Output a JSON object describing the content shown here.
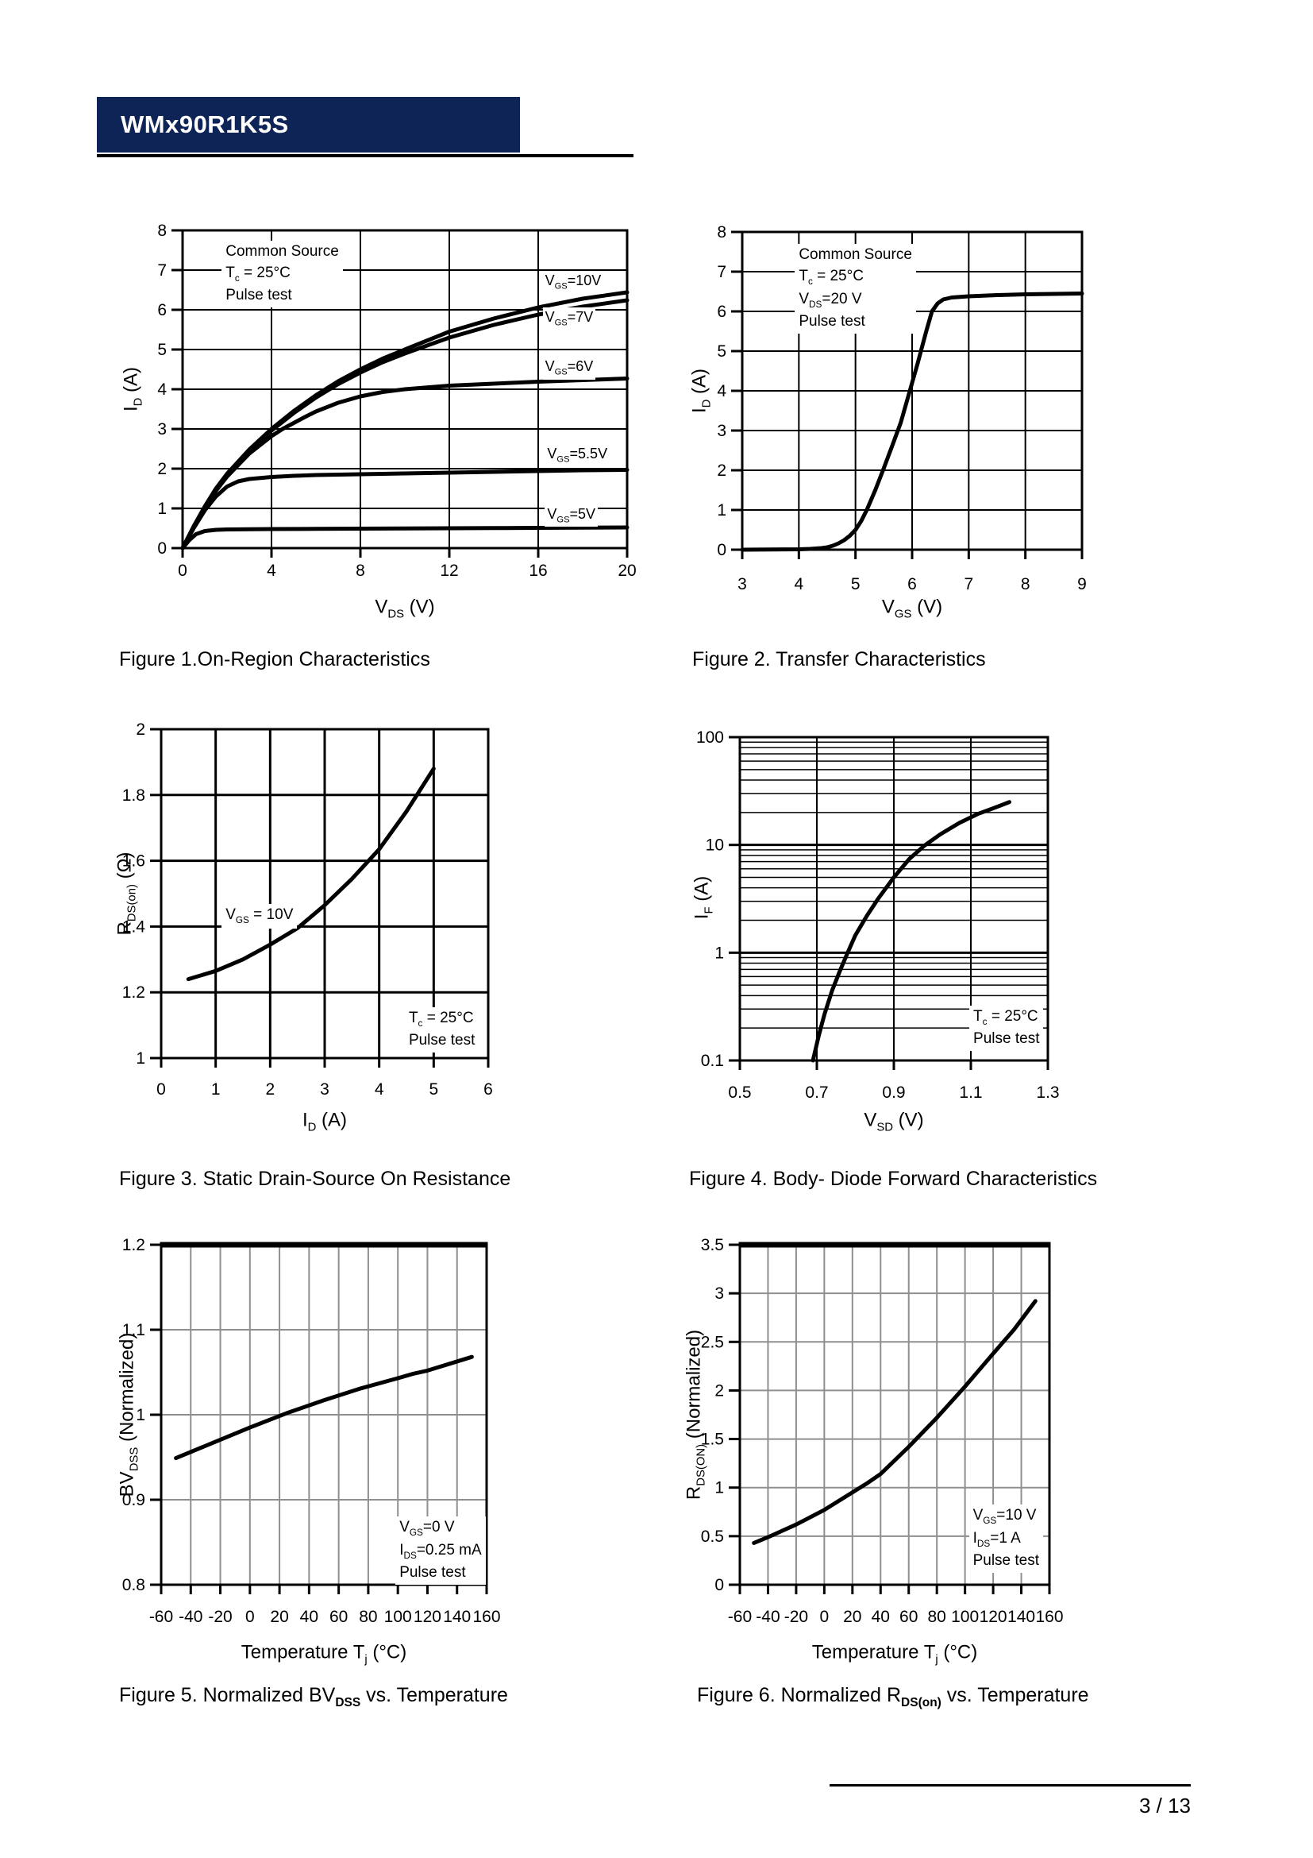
{
  "header": {
    "title": "WMx90R1K5S",
    "banner_color": "#0E2356"
  },
  "footer": {
    "page_number": "3 / 13"
  },
  "chart_data": [
    {
      "id": "fig1",
      "type": "line",
      "caption": "Figure 1.On-Region Characteristics",
      "xlabel": "V~DS~ (V)",
      "ylabel": "I~D~ (A)",
      "xlim": [
        0,
        20
      ],
      "ylim": [
        0,
        8
      ],
      "xticks": [
        "0",
        "4",
        "8",
        "12",
        "16",
        "20"
      ],
      "yticks": [
        "0",
        "1",
        "2",
        "3",
        "4",
        "5",
        "6",
        "7",
        "8"
      ],
      "xgrid": [
        4,
        8,
        12,
        16
      ],
      "ygrid": [
        1,
        2,
        3,
        4,
        5,
        6,
        7
      ],
      "grid_color": "#000000",
      "ylog": false,
      "annotations": [
        {
          "text": "Common Source\nT~c~ = 25°C\nPulse test",
          "fx": 0.088,
          "fy": 0.032
        }
      ],
      "series": [
        {
          "name": "V~GS~=10V",
          "label": {
            "fx": 0.81,
            "fy": 0.128
          },
          "x": [
            0,
            0.5,
            1,
            1.5,
            2,
            3,
            4,
            5,
            6,
            7,
            8,
            9,
            10,
            12,
            14,
            16,
            18,
            20
          ],
          "y": [
            0,
            0.55,
            1.05,
            1.5,
            1.87,
            2.48,
            3.0,
            3.45,
            3.85,
            4.2,
            4.5,
            4.77,
            5.0,
            5.45,
            5.78,
            6.06,
            6.28,
            6.44
          ]
        },
        {
          "name": "V~GS~=7V",
          "label": {
            "fx": 0.81,
            "fy": 0.243
          },
          "x": [
            0,
            0.5,
            1,
            1.5,
            2,
            3,
            4,
            5,
            6,
            7,
            8,
            9,
            10,
            12,
            14,
            16,
            18,
            20
          ],
          "y": [
            0,
            0.54,
            1.03,
            1.47,
            1.84,
            2.44,
            2.96,
            3.4,
            3.79,
            4.13,
            4.42,
            4.68,
            4.9,
            5.3,
            5.62,
            5.88,
            6.08,
            6.24
          ]
        },
        {
          "name": "V~GS~=6V",
          "label": {
            "fx": 0.81,
            "fy": 0.398
          },
          "x": [
            0,
            0.5,
            1,
            1.5,
            2,
            3,
            4,
            4.5,
            5,
            5.5,
            6,
            7,
            8,
            9,
            10,
            12,
            14,
            16,
            18,
            20
          ],
          "y": [
            0,
            0.53,
            1.0,
            1.44,
            1.8,
            2.38,
            2.82,
            3.0,
            3.15,
            3.3,
            3.44,
            3.66,
            3.82,
            3.93,
            4.0,
            4.09,
            4.14,
            4.19,
            4.23,
            4.27
          ]
        },
        {
          "name": "V~GS~=5.5V",
          "label": {
            "fx": 0.815,
            "fy": 0.672
          },
          "x": [
            0,
            0.5,
            1,
            1.5,
            2,
            2.5,
            3,
            4,
            5,
            6,
            8,
            10,
            12,
            14,
            16,
            18,
            20
          ],
          "y": [
            0,
            0.5,
            0.95,
            1.3,
            1.55,
            1.68,
            1.74,
            1.79,
            1.82,
            1.84,
            1.86,
            1.88,
            1.9,
            1.92,
            1.94,
            1.96,
            1.97
          ]
        },
        {
          "name": "V~GS~=5V",
          "label": {
            "fx": 0.815,
            "fy": 0.862
          },
          "x": [
            0,
            0.3,
            0.6,
            1,
            1.5,
            2,
            3,
            4,
            6,
            8,
            10,
            12,
            14,
            16,
            18,
            20
          ],
          "y": [
            0,
            0.2,
            0.35,
            0.43,
            0.46,
            0.47,
            0.475,
            0.48,
            0.485,
            0.49,
            0.495,
            0.5,
            0.505,
            0.51,
            0.515,
            0.52
          ]
        }
      ]
    },
    {
      "id": "fig2",
      "type": "line",
      "caption": "Figure 2. Transfer Characteristics",
      "xlabel": "V~GS~ (V)",
      "ylabel": "I~D~ (A)",
      "xlim": [
        3,
        9
      ],
      "ylim": [
        0,
        8
      ],
      "xticks": [
        "3",
        "4",
        "5",
        "6",
        "7",
        "8",
        "9"
      ],
      "yticks": [
        "0",
        "1",
        "2",
        "3",
        "4",
        "5",
        "6",
        "7",
        "8"
      ],
      "xgrid": [
        4,
        5,
        6,
        7,
        8
      ],
      "ygrid": [
        1,
        2,
        3,
        4,
        5,
        6,
        7
      ],
      "grid_color": "#000000",
      "ylog": false,
      "annotations": [
        {
          "text": "Common Source\nT~c~ = 25°C\nV~DS~=20 V\nPulse test",
          "fx": 0.155,
          "fy": 0.038
        }
      ],
      "series": [
        {
          "name": "transfer-curve",
          "label": null,
          "x": [
            3,
            4,
            4.2,
            4.4,
            4.5,
            4.6,
            4.7,
            4.8,
            4.9,
            5.0,
            5.1,
            5.2,
            5.35,
            5.5,
            5.65,
            5.8,
            5.95,
            6.1,
            6.25,
            6.35,
            6.45,
            6.55,
            6.7,
            7,
            7.5,
            8,
            8.5,
            9
          ],
          "y": [
            0,
            0.01,
            0.02,
            0.04,
            0.06,
            0.1,
            0.16,
            0.24,
            0.35,
            0.5,
            0.72,
            1.0,
            1.5,
            2.05,
            2.62,
            3.2,
            3.95,
            4.7,
            5.5,
            6.0,
            6.2,
            6.3,
            6.35,
            6.38,
            6.41,
            6.43,
            6.44,
            6.45
          ]
        }
      ]
    },
    {
      "id": "fig3",
      "type": "line",
      "caption": "Figure 3. Static Drain-Source On Resistance",
      "xlabel": "I~D~ (A)",
      "ylabel": "R~DS(on)~ (Ω)",
      "xlim": [
        0,
        6
      ],
      "ylim": [
        1,
        2
      ],
      "xticks": [
        "0",
        "1",
        "2",
        "3",
        "4",
        "5",
        "6"
      ],
      "yticks": [
        "1",
        "1.2",
        "1.4",
        "1.6",
        "1.8",
        "2"
      ],
      "xgrid": [
        1,
        2,
        3,
        4,
        5
      ],
      "ygrid": [
        1.2,
        1.4,
        1.6,
        1.8
      ],
      "grid_color": "#000000",
      "ylog": false,
      "annotations": [
        {
          "text": "V~GS~ = 10V",
          "fx": 0.185,
          "fy": 0.532
        },
        {
          "text": "T~c~ = 25°C\nPulse test",
          "fx": 0.745,
          "fy": 0.845
        }
      ],
      "series": [
        {
          "name": "rdson-curve",
          "label": null,
          "x": [
            0.5,
            1,
            1.5,
            2,
            2.5,
            3,
            3.5,
            4,
            4.5,
            5
          ],
          "y": [
            1.24,
            1.265,
            1.3,
            1.345,
            1.395,
            1.465,
            1.545,
            1.635,
            1.75,
            1.88
          ]
        }
      ]
    },
    {
      "id": "fig4",
      "type": "line",
      "caption": "Figure 4. Body- Diode Forward Characteristics",
      "xlabel": "V~SD~ (V)",
      "ylabel": "I~F~ (A)",
      "xlim": [
        0.5,
        1.3
      ],
      "ylim": [
        0.1,
        100
      ],
      "xticks": [
        "0.5",
        "0.7",
        "0.9",
        "1.1",
        "1.3"
      ],
      "yticks": [
        "0.1",
        "1",
        "10",
        "100"
      ],
      "xgrid": [
        0.7,
        0.9,
        1.1
      ],
      "ygrid": [
        1,
        10
      ],
      "grid_color": "#000000",
      "ylog": true,
      "annotations": [
        {
          "text": "T~c~ = 25°C\nPulse test",
          "fx": 0.745,
          "fy": 0.83
        }
      ],
      "series": [
        {
          "name": "body-diode-curve",
          "label": null,
          "x": [
            0.69,
            0.705,
            0.72,
            0.74,
            0.76,
            0.78,
            0.8,
            0.83,
            0.86,
            0.9,
            0.94,
            0.98,
            1.02,
            1.07,
            1.12,
            1.16,
            1.2
          ],
          "y": [
            0.1,
            0.17,
            0.27,
            0.45,
            0.68,
            1.0,
            1.45,
            2.2,
            3.2,
            5.0,
            7.4,
            9.9,
            12.5,
            16,
            19.5,
            22,
            25
          ]
        }
      ]
    },
    {
      "id": "fig5",
      "type": "line",
      "caption": "Figure 5. Normalized BV~DSS~ vs. Temperature",
      "xlabel": "Temperature T~j~ (°C)",
      "ylabel": "BV~DSS~ (Normalized)",
      "xlim": [
        -60,
        160
      ],
      "ylim": [
        0.8,
        1.2
      ],
      "xticks": [
        "-60",
        "-40",
        "-20",
        "0",
        "20",
        "40",
        "60",
        "80",
        "100",
        "120",
        "140",
        "160"
      ],
      "yticks": [
        "0.8",
        "0.9",
        "1",
        "1.1",
        "1.2"
      ],
      "xgrid": [
        -40,
        -20,
        0,
        20,
        40,
        60,
        80,
        100,
        120,
        140
      ],
      "ygrid": [
        0.9,
        1.0,
        1.1
      ],
      "grid_color": "#8f8f8f",
      "ylog": false,
      "top_heavy": true,
      "annotations": [
        {
          "text": "V~GS~=0 V\nI~DS~=0.25 mA\nPulse test",
          "fx": 0.72,
          "fy": 0.8
        }
      ],
      "series": [
        {
          "name": "bvdss-curve",
          "label": null,
          "x": [
            -50,
            -25,
            0,
            25,
            50,
            75,
            100,
            110,
            120,
            135,
            150
          ],
          "y": [
            0.949,
            0.967,
            0.985,
            1.002,
            1.017,
            1.031,
            1.043,
            1.048,
            1.052,
            1.06,
            1.068
          ]
        }
      ]
    },
    {
      "id": "fig6",
      "type": "line",
      "caption": "Figure 6. Normalized R~DS(on)~ vs. Temperature",
      "xlabel": "Temperature T~j~ (°C)",
      "ylabel": "R~DS(ON)~ (Normalized)",
      "xlim": [
        -60,
        160
      ],
      "ylim": [
        0,
        3.5
      ],
      "xticks": [
        "-60",
        "-40",
        "-20",
        "0",
        "20",
        "40",
        "60",
        "80",
        "100",
        "120",
        "140",
        "160"
      ],
      "yticks": [
        "0",
        "0.5",
        "1",
        "1.5",
        "2",
        "2.5",
        "3",
        "3.5"
      ],
      "xgrid": [
        -40,
        -20,
        0,
        20,
        40,
        60,
        80,
        100,
        120,
        140
      ],
      "ygrid": [
        0.5,
        1,
        1.5,
        2,
        2.5,
        3
      ],
      "grid_color": "#8f8f8f",
      "ylog": false,
      "top_heavy": true,
      "annotations": [
        {
          "text": "V~GS~=10 V\nI~DS~=1 A\nPulse test",
          "fx": 0.74,
          "fy": 0.765
        }
      ],
      "series": [
        {
          "name": "rdson-temp-curve",
          "label": null,
          "x": [
            -50,
            -40,
            -20,
            0,
            20,
            30,
            40,
            60,
            80,
            100,
            120,
            135,
            150
          ],
          "y": [
            0.43,
            0.49,
            0.62,
            0.77,
            0.95,
            1.04,
            1.14,
            1.42,
            1.72,
            2.04,
            2.38,
            2.63,
            2.92
          ]
        }
      ]
    }
  ]
}
